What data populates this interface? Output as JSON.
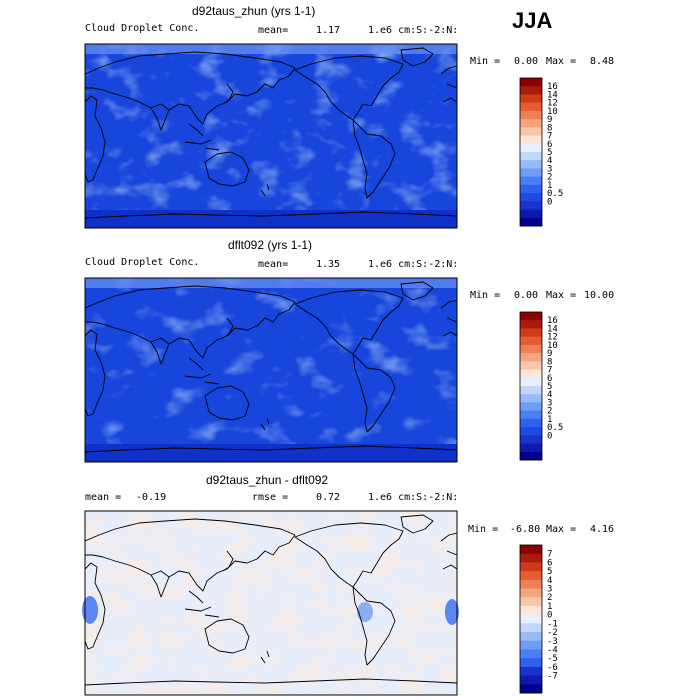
{
  "season": "JJA",
  "colorbar_colors": {
    "main": [
      "#00008b",
      "#0d1ab0",
      "#1a33cc",
      "#1f4ae0",
      "#2e62ee",
      "#4a7ef5",
      "#6f9cf7",
      "#97baf9",
      "#c1d6fb",
      "#e9f0fd",
      "#fde6d6",
      "#f9c6a9",
      "#f5a480",
      "#ef7f57",
      "#e55c33",
      "#cf3a1b",
      "#a81c0b",
      "#8b0000"
    ],
    "diff": [
      "#00008b",
      "#0d1ab0",
      "#1a33cc",
      "#2e62ee",
      "#4a7ef5",
      "#6f9cf7",
      "#97baf9",
      "#c1d6fb",
      "#e9f0fd",
      "#fde6d6",
      "#f9c6a9",
      "#f5a480",
      "#ef7f57",
      "#e55c33",
      "#cf3a1b",
      "#a81c0b",
      "#8b0000"
    ]
  },
  "chart_data": [
    {
      "type": "heatmap",
      "title": "d92taus_zhun (yrs 1-1)",
      "variable": "Cloud Droplet Conc.",
      "mean_label": "mean=",
      "mean": "1.17",
      "units": "1.e6 cm:S:-2:N:",
      "min_label": "Min =",
      "min": "0.00",
      "max_label": "Max =",
      "max": "8.48",
      "levels": [
        "16",
        "14",
        "12",
        "10",
        "9",
        "8",
        "7",
        "6",
        "5",
        "4",
        "3",
        "2",
        "1",
        "0.5",
        "0"
      ]
    },
    {
      "type": "heatmap",
      "title": "dflt092 (yrs 1-1)",
      "variable": "Cloud Droplet Conc.",
      "mean_label": "mean=",
      "mean": "1.35",
      "units": "1.e6 cm:S:-2:N:",
      "min_label": "Min =",
      "min": "0.00",
      "max_label": "Max =",
      "max": "10.00",
      "levels": [
        "16",
        "14",
        "12",
        "10",
        "9",
        "8",
        "7",
        "6",
        "5",
        "4",
        "3",
        "2",
        "1",
        "0.5",
        "0"
      ]
    },
    {
      "type": "heatmap",
      "title": "d92taus_zhun - dflt092",
      "mean_label": "mean =",
      "mean": "-0.19",
      "rmse_label": "rmse =",
      "rmse": "0.72",
      "units": "1.e6 cm:S:-2:N:",
      "min_label": "Min =",
      "min": "-6.80",
      "max_label": "Max =",
      "max": "4.16",
      "levels": [
        "7",
        "6",
        "5",
        "4",
        "3",
        "2",
        "1",
        "0",
        "-1",
        "-2",
        "-3",
        "-4",
        "-5",
        "-6",
        "-7"
      ]
    }
  ]
}
